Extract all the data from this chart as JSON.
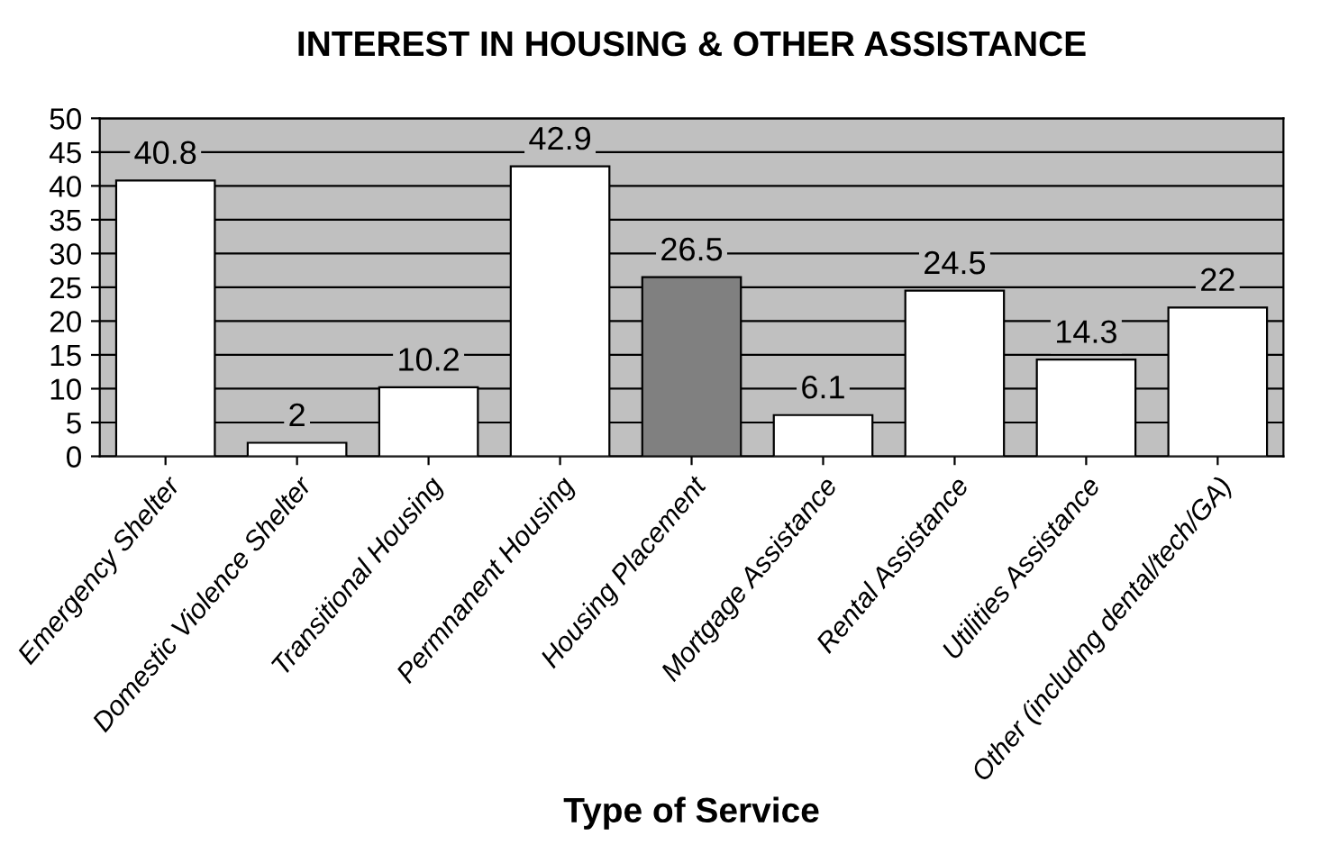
{
  "chart_data": {
    "type": "bar",
    "title": "INTEREST IN HOUSING & OTHER ASSISTANCE",
    "xlabel": "Type of Service",
    "categories": [
      "Emergency Shelter",
      "Domestic Violence Shelter",
      "Transitional Housing",
      "Permnanent Housing",
      "Housing Placement",
      "Mortgage Assistance",
      "Rental Assistance",
      "Utilities Assistance",
      "Other (includng dental/tech/GA)"
    ],
    "values": [
      40.8,
      2,
      10.2,
      42.9,
      26.5,
      6.1,
      24.5,
      14.3,
      22
    ],
    "colors": [
      "#ffffff",
      "#ffffff",
      "#ffffff",
      "#ffffff",
      "#808080",
      "#ffffff",
      "#ffffff",
      "#ffffff",
      "#ffffff"
    ],
    "ylim": [
      0,
      50
    ],
    "yticks": [
      0,
      5,
      10,
      15,
      20,
      25,
      30,
      35,
      40,
      45,
      50
    ],
    "grid": "y",
    "data_labels": true
  }
}
